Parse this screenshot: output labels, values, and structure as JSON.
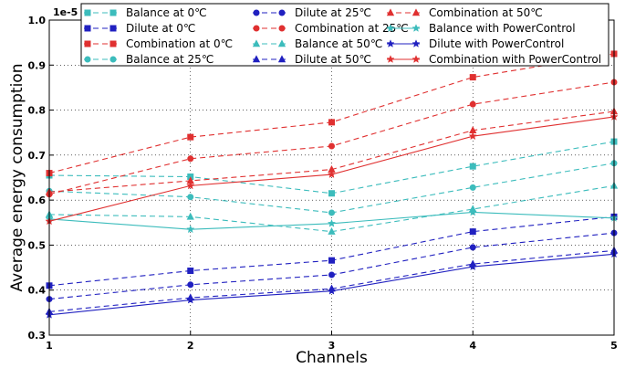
{
  "chart_data": {
    "type": "line",
    "title": "",
    "xlabel": "Channels",
    "ylabel": "Average energy consumption",
    "y_offset_text": "1e-5",
    "x": [
      1,
      2,
      3,
      4,
      5
    ],
    "xlim": [
      1,
      5
    ],
    "ylim": [
      0.3,
      1.0
    ],
    "x_ticks": [
      1,
      2,
      3,
      4,
      5
    ],
    "y_ticks": [
      0.3,
      0.4,
      0.5,
      0.6,
      0.7,
      0.8,
      0.9,
      1.0
    ],
    "y_tick_labels": [
      "0.3",
      "0.4",
      "0.5",
      "0.6",
      "0.7",
      "0.8",
      "0.9",
      "1.0"
    ],
    "grid": true,
    "legend_position": "top",
    "colors": {
      "balance": "#3cbcbc",
      "dilute": "#2020c0",
      "combination": "#e03030"
    },
    "series": [
      {
        "name": "Balance at 0℃",
        "values": [
          0.655,
          0.652,
          0.615,
          0.675,
          0.73
        ],
        "color": "#3cbcbc",
        "dash": "dashed",
        "marker": "square"
      },
      {
        "name": "Dilute at 0℃",
        "values": [
          0.41,
          0.443,
          0.466,
          0.53,
          0.563
        ],
        "color": "#2020c0",
        "dash": "dashed",
        "marker": "square"
      },
      {
        "name": "Combination at 0℃",
        "values": [
          0.66,
          0.74,
          0.773,
          0.873,
          0.925
        ],
        "color": "#e03030",
        "dash": "dashed",
        "marker": "square"
      },
      {
        "name": "Balance at 25℃",
        "values": [
          0.62,
          0.607,
          0.572,
          0.628,
          0.682
        ],
        "color": "#3cbcbc",
        "dash": "dashed",
        "marker": "circle"
      },
      {
        "name": "Dilute at 25℃",
        "values": [
          0.38,
          0.412,
          0.434,
          0.495,
          0.527
        ],
        "color": "#2020c0",
        "dash": "dashed",
        "marker": "circle"
      },
      {
        "name": "Combination at 25℃",
        "values": [
          0.613,
          0.692,
          0.72,
          0.813,
          0.862
        ],
        "color": "#e03030",
        "dash": "dashed",
        "marker": "circle"
      },
      {
        "name": "Balance at 50℃",
        "values": [
          0.568,
          0.563,
          0.53,
          0.58,
          0.632
        ],
        "color": "#3cbcbc",
        "dash": "dashed",
        "marker": "triangle"
      },
      {
        "name": "Dilute at 50℃",
        "values": [
          0.352,
          0.383,
          0.403,
          0.458,
          0.488
        ],
        "color": "#2020c0",
        "dash": "dashed",
        "marker": "triangle"
      },
      {
        "name": "Combination at 50℃",
        "values": [
          0.618,
          0.643,
          0.668,
          0.755,
          0.797
        ],
        "color": "#e03030",
        "dash": "dashed",
        "marker": "triangle"
      },
      {
        "name": "Balance with PowerControl",
        "values": [
          0.558,
          0.535,
          0.548,
          0.573,
          0.56
        ],
        "color": "#3cbcbc",
        "dash": "solid",
        "marker": "star"
      },
      {
        "name": "Dilute with PowerControl",
        "values": [
          0.345,
          0.378,
          0.398,
          0.452,
          0.48
        ],
        "color": "#2020c0",
        "dash": "solid",
        "marker": "star"
      },
      {
        "name": "Combination with PowerControl",
        "values": [
          0.553,
          0.632,
          0.657,
          0.742,
          0.785
        ],
        "color": "#e03030",
        "dash": "solid",
        "marker": "star"
      }
    ]
  }
}
